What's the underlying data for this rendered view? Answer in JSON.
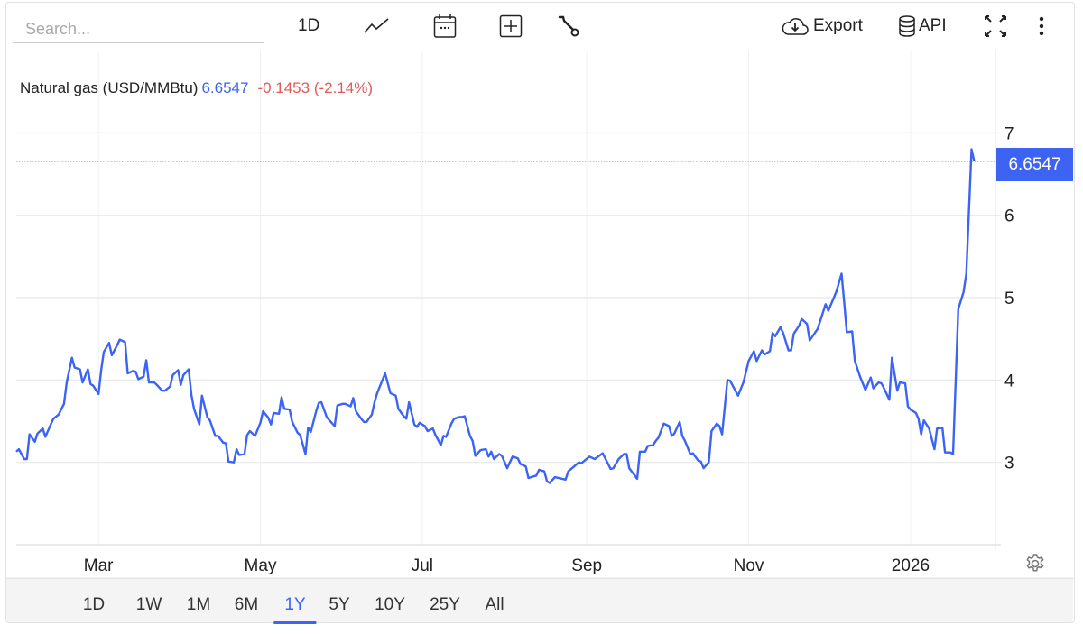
{
  "toolbar": {
    "search_placeholder": "Search...",
    "interval_label": "1D",
    "export_label": "Export",
    "api_label": "API",
    "icons": [
      "line-chart-icon",
      "calendar-icon",
      "add-square-icon",
      "wrench-icon",
      "cloud-download-icon",
      "database-icon",
      "fullscreen-icon",
      "more-vertical-icon",
      "gear-icon"
    ]
  },
  "legend": {
    "name": "Natural gas (USD/MMBtu)",
    "value": "6.6547",
    "change": "-0.1453 (-2.14%)"
  },
  "price_tag": "6.6547",
  "ranges": {
    "items": [
      "1D",
      "1W",
      "1M",
      "6M",
      "1Y",
      "5Y",
      "10Y",
      "25Y",
      "All"
    ],
    "active": "1Y"
  },
  "colors": {
    "line": "#3b63f6",
    "accent": "#3d63f2",
    "negative": "#e05b57",
    "grid": "#e8e8e8"
  },
  "chart_data": {
    "type": "line",
    "title": "",
    "xlabel": "",
    "ylabel": "",
    "xlim": [
      "2025-01-29",
      "2026-02-02"
    ],
    "ylim": [
      2,
      8
    ],
    "yticks": [
      3,
      4,
      5,
      6,
      7
    ],
    "xticks": [
      {
        "date": "2025-03-01",
        "label": "Mar"
      },
      {
        "date": "2025-05-01",
        "label": "May"
      },
      {
        "date": "2025-07-01",
        "label": "Jul"
      },
      {
        "date": "2025-09-01",
        "label": "Sep"
      },
      {
        "date": "2025-11-01",
        "label": "Nov"
      },
      {
        "date": "2026-01-01",
        "label": "2026"
      }
    ],
    "y_axis_position": "right",
    "grid": true,
    "last_value": 6.6547,
    "series": [
      {
        "points": [
          [
            "2025-01-29",
            3.13
          ],
          [
            "2025-01-30",
            3.16
          ],
          [
            "2025-02-01",
            3.04
          ],
          [
            "2025-02-02",
            3.04
          ],
          [
            "2025-02-03",
            3.34
          ],
          [
            "2025-02-05",
            3.25
          ],
          [
            "2025-02-06",
            3.35
          ],
          [
            "2025-02-08",
            3.41
          ],
          [
            "2025-02-09",
            3.31
          ],
          [
            "2025-02-11",
            3.46
          ],
          [
            "2025-02-12",
            3.53
          ],
          [
            "2025-02-14",
            3.58
          ],
          [
            "2025-02-16",
            3.71
          ],
          [
            "2025-02-17",
            3.97
          ],
          [
            "2025-02-19",
            4.27
          ],
          [
            "2025-02-20",
            4.15
          ],
          [
            "2025-02-22",
            4.13
          ],
          [
            "2025-02-23",
            3.97
          ],
          [
            "2025-02-25",
            4.13
          ],
          [
            "2025-02-26",
            3.95
          ],
          [
            "2025-02-27",
            3.93
          ],
          [
            "2025-03-01",
            3.83
          ],
          [
            "2025-03-02",
            4.12
          ],
          [
            "2025-03-03",
            4.34
          ],
          [
            "2025-03-05",
            4.45
          ],
          [
            "2025-03-06",
            4.3
          ],
          [
            "2025-03-08",
            4.42
          ],
          [
            "2025-03-09",
            4.49
          ],
          [
            "2025-03-11",
            4.46
          ],
          [
            "2025-03-12",
            4.08
          ],
          [
            "2025-03-14",
            4.11
          ],
          [
            "2025-03-15",
            4.1
          ],
          [
            "2025-03-16",
            4.01
          ],
          [
            "2025-03-18",
            4.04
          ],
          [
            "2025-03-19",
            4.24
          ],
          [
            "2025-03-20",
            3.97
          ],
          [
            "2025-03-22",
            3.97
          ],
          [
            "2025-03-23",
            3.94
          ],
          [
            "2025-03-25",
            3.87
          ],
          [
            "2025-03-26",
            3.87
          ],
          [
            "2025-03-28",
            3.92
          ],
          [
            "2025-03-29",
            4.06
          ],
          [
            "2025-03-31",
            4.12
          ],
          [
            "2025-04-01",
            3.94
          ],
          [
            "2025-04-02",
            4.06
          ],
          [
            "2025-04-04",
            4.13
          ],
          [
            "2025-04-05",
            3.82
          ],
          [
            "2025-04-06",
            3.65
          ],
          [
            "2025-04-08",
            3.46
          ],
          [
            "2025-04-09",
            3.81
          ],
          [
            "2025-04-11",
            3.55
          ],
          [
            "2025-04-12",
            3.51
          ],
          [
            "2025-04-14",
            3.32
          ],
          [
            "2025-04-15",
            3.32
          ],
          [
            "2025-04-17",
            3.24
          ],
          [
            "2025-04-18",
            3.23
          ],
          [
            "2025-04-19",
            3.01
          ],
          [
            "2025-04-21",
            3.0
          ],
          [
            "2025-04-22",
            3.16
          ],
          [
            "2025-04-23",
            3.09
          ],
          [
            "2025-04-25",
            3.1
          ],
          [
            "2025-04-26",
            3.33
          ],
          [
            "2025-04-27",
            3.38
          ],
          [
            "2025-04-29",
            3.32
          ],
          [
            "2025-05-01",
            3.48
          ],
          [
            "2025-05-02",
            3.62
          ],
          [
            "2025-05-04",
            3.54
          ],
          [
            "2025-05-05",
            3.46
          ],
          [
            "2025-05-06",
            3.6
          ],
          [
            "2025-05-08",
            3.59
          ],
          [
            "2025-05-09",
            3.79
          ],
          [
            "2025-05-10",
            3.65
          ],
          [
            "2025-05-12",
            3.64
          ],
          [
            "2025-05-13",
            3.49
          ],
          [
            "2025-05-15",
            3.36
          ],
          [
            "2025-05-16",
            3.33
          ],
          [
            "2025-05-18",
            3.1
          ],
          [
            "2025-05-19",
            3.42
          ],
          [
            "2025-05-20",
            3.37
          ],
          [
            "2025-05-22",
            3.62
          ],
          [
            "2025-05-23",
            3.72
          ],
          [
            "2025-05-24",
            3.73
          ],
          [
            "2025-05-26",
            3.55
          ],
          [
            "2025-05-27",
            3.51
          ],
          [
            "2025-05-29",
            3.44
          ],
          [
            "2025-05-30",
            3.69
          ],
          [
            "2025-06-01",
            3.71
          ],
          [
            "2025-06-02",
            3.71
          ],
          [
            "2025-06-04",
            3.68
          ],
          [
            "2025-06-05",
            3.78
          ],
          [
            "2025-06-06",
            3.62
          ],
          [
            "2025-06-08",
            3.53
          ],
          [
            "2025-06-09",
            3.49
          ],
          [
            "2025-06-10",
            3.49
          ],
          [
            "2025-06-12",
            3.58
          ],
          [
            "2025-06-13",
            3.73
          ],
          [
            "2025-06-14",
            3.84
          ],
          [
            "2025-06-16",
            4.0
          ],
          [
            "2025-06-17",
            4.08
          ],
          [
            "2025-06-19",
            3.84
          ],
          [
            "2025-06-21",
            3.81
          ],
          [
            "2025-06-22",
            3.65
          ],
          [
            "2025-06-24",
            3.56
          ],
          [
            "2025-06-25",
            3.53
          ],
          [
            "2025-06-26",
            3.73
          ],
          [
            "2025-06-28",
            3.46
          ],
          [
            "2025-06-29",
            3.43
          ],
          [
            "2025-06-30",
            3.48
          ],
          [
            "2025-07-02",
            3.44
          ],
          [
            "2025-07-03",
            3.38
          ],
          [
            "2025-07-05",
            3.41
          ],
          [
            "2025-07-06",
            3.33
          ],
          [
            "2025-07-08",
            3.21
          ],
          [
            "2025-07-09",
            3.32
          ],
          [
            "2025-07-10",
            3.31
          ],
          [
            "2025-07-12",
            3.47
          ],
          [
            "2025-07-13",
            3.53
          ],
          [
            "2025-07-15",
            3.55
          ],
          [
            "2025-07-16",
            3.55
          ],
          [
            "2025-07-17",
            3.56
          ],
          [
            "2025-07-19",
            3.32
          ],
          [
            "2025-07-20",
            3.26
          ],
          [
            "2025-07-21",
            3.08
          ],
          [
            "2025-07-23",
            3.15
          ],
          [
            "2025-07-25",
            3.16
          ],
          [
            "2025-07-26",
            3.07
          ],
          [
            "2025-07-27",
            3.13
          ],
          [
            "2025-07-28",
            3.04
          ],
          [
            "2025-07-30",
            3.1
          ],
          [
            "2025-07-31",
            3.08
          ],
          [
            "2025-08-02",
            2.93
          ],
          [
            "2025-08-04",
            3.07
          ],
          [
            "2025-08-06",
            3.05
          ],
          [
            "2025-08-07",
            2.98
          ],
          [
            "2025-08-09",
            2.95
          ],
          [
            "2025-08-10",
            2.81
          ],
          [
            "2025-08-13",
            2.84
          ],
          [
            "2025-08-14",
            2.91
          ],
          [
            "2025-08-16",
            2.89
          ],
          [
            "2025-08-17",
            2.77
          ],
          [
            "2025-08-18",
            2.75
          ],
          [
            "2025-08-20",
            2.82
          ],
          [
            "2025-08-24",
            2.79
          ],
          [
            "2025-08-25",
            2.89
          ],
          [
            "2025-08-29",
            3.0
          ],
          [
            "2025-08-30",
            2.99
          ],
          [
            "2025-09-02",
            3.07
          ],
          [
            "2025-09-04",
            3.04
          ],
          [
            "2025-09-07",
            3.11
          ],
          [
            "2025-09-10",
            2.92
          ],
          [
            "2025-09-11",
            2.93
          ],
          [
            "2025-09-13",
            3.04
          ],
          [
            "2025-09-15",
            3.1
          ],
          [
            "2025-09-16",
            3.1
          ],
          [
            "2025-09-17",
            2.93
          ],
          [
            "2025-09-20",
            2.8
          ],
          [
            "2025-09-21",
            3.13
          ],
          [
            "2025-09-23",
            3.13
          ],
          [
            "2025-09-24",
            3.2
          ],
          [
            "2025-09-26",
            3.21
          ],
          [
            "2025-09-27",
            3.26
          ],
          [
            "2025-09-28",
            3.3
          ],
          [
            "2025-09-30",
            3.47
          ],
          [
            "2025-10-02",
            3.44
          ],
          [
            "2025-10-03",
            3.32
          ],
          [
            "2025-10-04",
            3.35
          ],
          [
            "2025-10-06",
            3.49
          ],
          [
            "2025-10-07",
            3.32
          ],
          [
            "2025-10-08",
            3.26
          ],
          [
            "2025-10-10",
            3.1
          ],
          [
            "2025-10-11",
            3.11
          ],
          [
            "2025-10-13",
            3.02
          ],
          [
            "2025-10-14",
            3.01
          ],
          [
            "2025-10-15",
            2.93
          ],
          [
            "2025-10-17",
            3.0
          ],
          [
            "2025-10-18",
            3.38
          ],
          [
            "2025-10-20",
            3.47
          ],
          [
            "2025-10-21",
            3.44
          ],
          [
            "2025-10-22",
            3.34
          ],
          [
            "2025-10-24",
            4.0
          ],
          [
            "2025-10-25",
            3.99
          ],
          [
            "2025-10-27",
            3.87
          ],
          [
            "2025-10-28",
            3.81
          ],
          [
            "2025-10-30",
            3.97
          ],
          [
            "2025-11-01",
            4.23
          ],
          [
            "2025-11-03",
            4.35
          ],
          [
            "2025-11-04",
            4.23
          ],
          [
            "2025-11-06",
            4.36
          ],
          [
            "2025-11-07",
            4.31
          ],
          [
            "2025-11-09",
            4.35
          ],
          [
            "2025-11-10",
            4.57
          ],
          [
            "2025-11-11",
            4.53
          ],
          [
            "2025-11-13",
            4.64
          ],
          [
            "2025-11-14",
            4.57
          ],
          [
            "2025-11-16",
            4.36
          ],
          [
            "2025-11-17",
            4.36
          ],
          [
            "2025-11-18",
            4.56
          ],
          [
            "2025-11-20",
            4.66
          ],
          [
            "2025-11-21",
            4.74
          ],
          [
            "2025-11-23",
            4.68
          ],
          [
            "2025-11-24",
            4.48
          ],
          [
            "2025-11-27",
            4.62
          ],
          [
            "2025-11-30",
            4.92
          ],
          [
            "2025-12-01",
            4.84
          ],
          [
            "2025-12-03",
            4.99
          ],
          [
            "2025-12-04",
            5.07
          ],
          [
            "2025-12-06",
            5.29
          ],
          [
            "2025-12-07",
            4.94
          ],
          [
            "2025-12-08",
            4.58
          ],
          [
            "2025-12-10",
            4.59
          ],
          [
            "2025-12-11",
            4.23
          ],
          [
            "2025-12-13",
            4.04
          ],
          [
            "2025-12-15",
            3.88
          ],
          [
            "2025-12-17",
            4.03
          ],
          [
            "2025-12-18",
            3.9
          ],
          [
            "2025-12-20",
            3.97
          ],
          [
            "2025-12-21",
            3.96
          ],
          [
            "2025-12-22",
            3.9
          ],
          [
            "2025-12-24",
            3.76
          ],
          [
            "2025-12-25",
            4.27
          ],
          [
            "2025-12-27",
            3.87
          ],
          [
            "2025-12-28",
            3.97
          ],
          [
            "2025-12-30",
            3.96
          ],
          [
            "2025-12-31",
            3.68
          ],
          [
            "2026-01-01",
            3.64
          ],
          [
            "2026-01-03",
            3.6
          ],
          [
            "2026-01-04",
            3.53
          ],
          [
            "2026-01-05",
            3.34
          ],
          [
            "2026-01-06",
            3.51
          ],
          [
            "2026-01-08",
            3.41
          ],
          [
            "2026-01-10",
            3.16
          ],
          [
            "2026-01-11",
            3.41
          ],
          [
            "2026-01-13",
            3.42
          ],
          [
            "2026-01-14",
            3.12
          ],
          [
            "2026-01-16",
            3.12
          ],
          [
            "2026-01-17",
            3.1
          ],
          [
            "2026-01-19",
            4.86
          ],
          [
            "2026-01-21",
            5.07
          ],
          [
            "2026-01-22",
            5.29
          ],
          [
            "2026-01-24",
            6.8
          ],
          [
            "2026-01-25",
            6.6547
          ]
        ]
      }
    ]
  }
}
